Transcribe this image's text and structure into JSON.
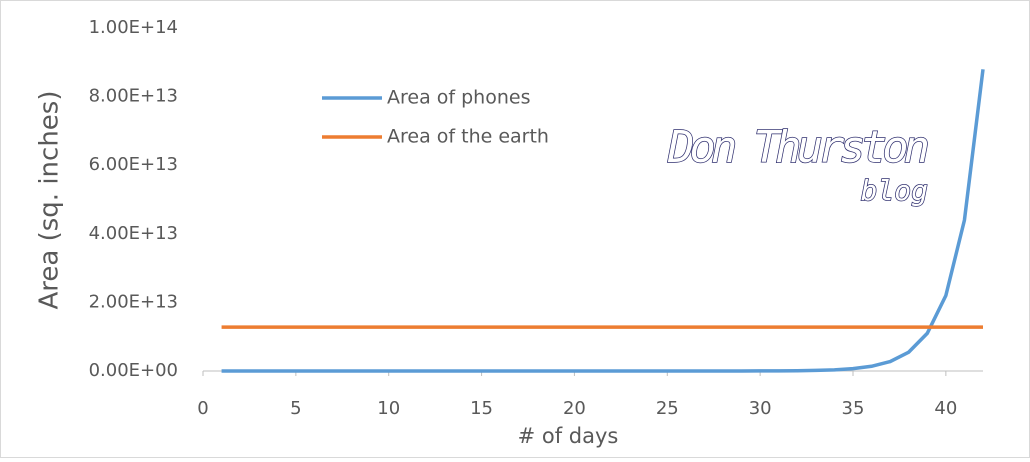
{
  "chart_data": {
    "type": "line",
    "x_label": "# of days",
    "y_label": "Area (sq. inches)",
    "watermark": [
      "Don Thurston",
      "blog"
    ],
    "series": [
      {
        "name": "Area of phones",
        "color": "#5b9bd5",
        "x": [
          1,
          2,
          3,
          4,
          5,
          6,
          7,
          8,
          9,
          10,
          11,
          12,
          13,
          14,
          15,
          16,
          17,
          18,
          19,
          20,
          21,
          22,
          23,
          24,
          25,
          26,
          27,
          28,
          29,
          30,
          31,
          32,
          33,
          34,
          35,
          36,
          37,
          38,
          39,
          40,
          41,
          42
        ],
        "values": [
          40,
          80,
          160,
          320,
          640,
          1280,
          2560,
          5120,
          10240,
          20480,
          40960,
          81920,
          163840,
          327680,
          655360,
          1310720,
          2621440,
          5242880,
          10485760,
          20971520,
          41943040,
          83886080,
          167772160,
          335544320,
          671088640,
          1342177280,
          2684354560,
          5368709120,
          10737418240,
          21474836480,
          42949672960,
          85899345920,
          171798691840,
          343597383680,
          687194767360,
          1374389534720,
          2748779069440,
          5497558138880,
          10995116277760,
          21990232555520,
          43980465111040,
          87960930222080
        ]
      },
      {
        "name": "Area of the earth",
        "color": "#ed7d31",
        "x": [
          1,
          42
        ],
        "values": [
          12800000000000,
          12800000000000
        ]
      }
    ],
    "xlim": [
      0,
      42
    ],
    "xticks": [
      0,
      5,
      10,
      15,
      20,
      25,
      30,
      35,
      40
    ],
    "ylim": [
      0,
      100000000000000
    ],
    "yticks": [
      {
        "value": 0,
        "label": "0.00E+00"
      },
      {
        "value": 20000000000000,
        "label": "2.00E+13"
      },
      {
        "value": 40000000000000,
        "label": "4.00E+13"
      },
      {
        "value": 60000000000000,
        "label": "6.00E+13"
      },
      {
        "value": 80000000000000,
        "label": "8.00E+13"
      },
      {
        "value": 100000000000000,
        "label": "1.00E+14"
      }
    ],
    "grid": false,
    "legend": "top-left"
  }
}
